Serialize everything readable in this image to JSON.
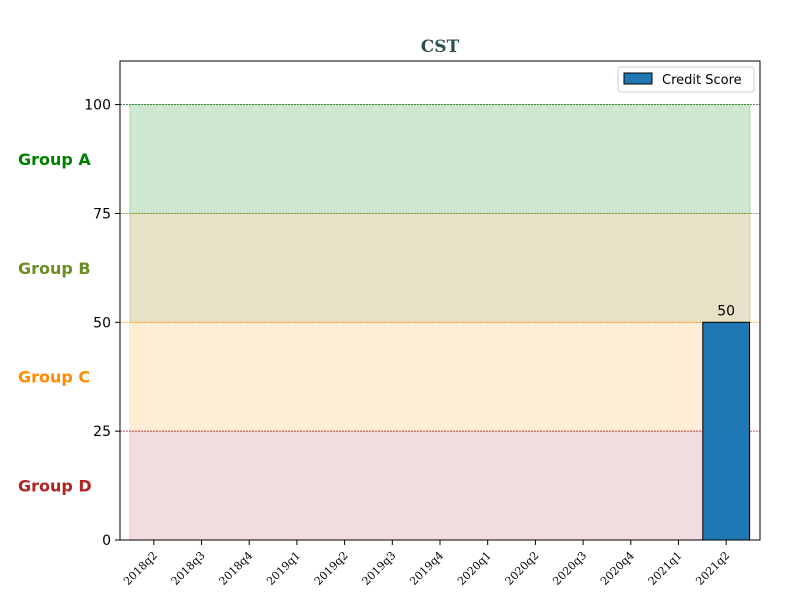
{
  "chart_data": {
    "type": "bar",
    "title": "CST",
    "title_color": "#2f4f4f",
    "categories": [
      "2018q2",
      "2018q3",
      "2018q4",
      "2019q1",
      "2019q2",
      "2019q3",
      "2019q4",
      "2020q1",
      "2020q2",
      "2020q3",
      "2020q4",
      "2021q1",
      "2021q2"
    ],
    "series": [
      {
        "name": "Credit Score",
        "color": "#1f77b4",
        "values": [
          null,
          null,
          null,
          null,
          null,
          null,
          null,
          null,
          null,
          null,
          null,
          null,
          50
        ],
        "data_labels": [
          "",
          "",
          "",
          "",
          "",
          "",
          "",
          "",
          "",
          "",
          "",
          "",
          "50"
        ]
      }
    ],
    "ylim": [
      0,
      110
    ],
    "yticks": [
      "0",
      "25",
      "50",
      "75",
      "100"
    ],
    "ytick_values": [
      0,
      25,
      50,
      75,
      100
    ],
    "bands": [
      {
        "label": "Group A",
        "from": 75,
        "to": 100,
        "fill": "#a5d6a7",
        "line": "#2e7d32",
        "text_color": "#008000"
      },
      {
        "label": "Group B",
        "from": 50,
        "to": 75,
        "fill": "#d4c99a",
        "line": "#6b8e23",
        "text_color": "#6b8e23"
      },
      {
        "label": "Group C",
        "from": 25,
        "to": 50,
        "fill": "#ffe0b2",
        "line": "#ff8c00",
        "text_color": "#ff8c00"
      },
      {
        "label": "Group D",
        "from": 0,
        "to": 25,
        "fill": "#e6bfc2",
        "line": "#b22222",
        "text_color": "#b22222"
      }
    ],
    "legend": {
      "position": "top-right",
      "label": "Credit Score"
    },
    "grid": false
  }
}
